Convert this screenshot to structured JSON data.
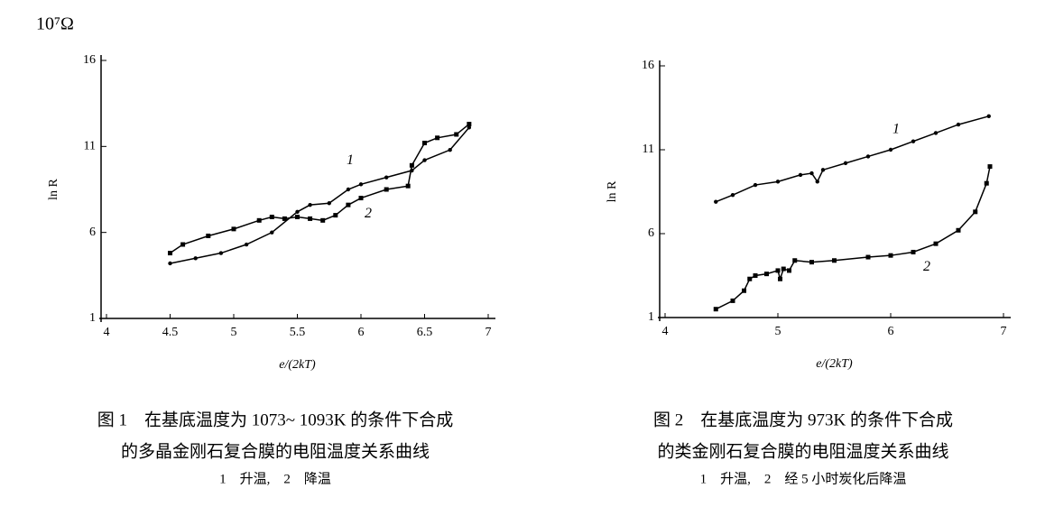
{
  "y_unit": "10⁷Ω",
  "chart_data": [
    {
      "type": "line",
      "xlabel": "e/(2kT)",
      "ylabel": "ln R",
      "xlim": [
        4,
        7
      ],
      "ylim": [
        1,
        16
      ],
      "xticks": [
        4,
        4.5,
        5,
        5.5,
        6,
        6.5,
        7
      ],
      "yticks": [
        1,
        6,
        11,
        16
      ],
      "series": [
        {
          "name": "1",
          "color": "#000000",
          "marker": "circle",
          "x": [
            4.5,
            4.7,
            4.9,
            5.1,
            5.3,
            5.5,
            5.6,
            5.75,
            5.9,
            6.0,
            6.2,
            6.4,
            6.5,
            6.7,
            6.85
          ],
          "values": [
            4.2,
            4.5,
            4.8,
            5.3,
            6.0,
            7.2,
            7.6,
            7.7,
            8.5,
            8.8,
            9.2,
            9.6,
            10.2,
            10.8,
            12.1
          ]
        },
        {
          "name": "2",
          "color": "#000000",
          "marker": "square",
          "x": [
            4.5,
            4.6,
            4.8,
            5.0,
            5.2,
            5.3,
            5.4,
            5.5,
            5.6,
            5.7,
            5.8,
            5.9,
            6.0,
            6.2,
            6.37,
            6.4,
            6.5,
            6.6,
            6.75,
            6.85
          ],
          "values": [
            4.8,
            5.3,
            5.8,
            6.2,
            6.7,
            6.9,
            6.8,
            6.9,
            6.8,
            6.7,
            7.0,
            7.6,
            8.0,
            8.5,
            8.7,
            9.9,
            11.2,
            11.5,
            11.7,
            12.3
          ]
        }
      ],
      "caption": [
        "图 1　在基底温度为 1073~ 1093K 的条件下合成",
        "的多晶金刚石复合膜的电阻温度关系曲线",
        "1　升温,　2　降温"
      ]
    },
    {
      "type": "line",
      "xlabel": "e/(2kT)",
      "ylabel": "ln R",
      "xlim": [
        4,
        7
      ],
      "ylim": [
        1,
        16
      ],
      "xticks": [
        4,
        5,
        6,
        7
      ],
      "yticks": [
        1,
        6,
        11,
        16
      ],
      "series": [
        {
          "name": "1",
          "color": "#000000",
          "marker": "circle",
          "x": [
            4.45,
            4.6,
            4.8,
            5.0,
            5.2,
            5.3,
            5.35,
            5.4,
            5.6,
            5.8,
            6.0,
            6.2,
            6.4,
            6.6,
            6.87
          ],
          "values": [
            7.9,
            8.3,
            8.9,
            9.1,
            9.5,
            9.6,
            9.1,
            9.8,
            10.2,
            10.6,
            11.0,
            11.5,
            12.0,
            12.5,
            13.0
          ]
        },
        {
          "name": "2",
          "color": "#000000",
          "marker": "square",
          "x": [
            4.45,
            4.6,
            4.7,
            4.75,
            4.8,
            4.9,
            5.0,
            5.02,
            5.05,
            5.1,
            5.15,
            5.3,
            5.5,
            5.8,
            6.0,
            6.2,
            6.4,
            6.6,
            6.75,
            6.85,
            6.88
          ],
          "values": [
            1.5,
            2.0,
            2.6,
            3.3,
            3.5,
            3.6,
            3.8,
            3.3,
            3.9,
            3.8,
            4.4,
            4.3,
            4.4,
            4.6,
            4.7,
            4.9,
            5.4,
            6.2,
            7.3,
            9.0,
            10.0
          ]
        }
      ],
      "caption": [
        "图 2　在基底温度为 973K 的条件下合成",
        "的类金刚石复合膜的电阻温度关系曲线",
        "1　升温,　2　经 5 小时炭化后降温"
      ]
    }
  ]
}
